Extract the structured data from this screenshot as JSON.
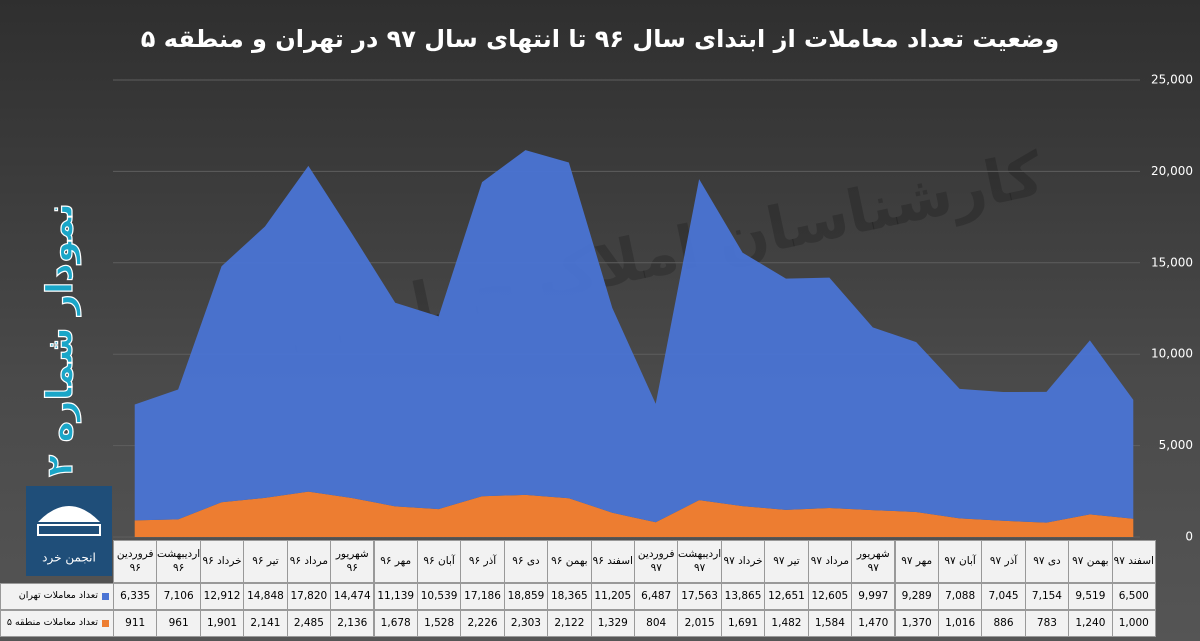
{
  "chart_data": {
    "type": "stacked-area",
    "title": "وضعیت تعداد معاملات از ابتدای سال ۹۶ تا انتهای سال ۹۷ در تهران و منطقه ۵",
    "side_label": "نمودار شماره ۲",
    "logo_text": "انجمن خرد",
    "watermark": "کارشناسان املاک چهارخانه",
    "categories": [
      "فروردین ۹۶",
      "اردیبهشت ۹۶",
      "خرداد ۹۶",
      "تیر ۹۶",
      "مرداد ۹۶",
      "شهریور ۹۶",
      "مهر ۹۶",
      "آبان ۹۶",
      "آذر ۹۶",
      "دی ۹۶",
      "بهمن ۹۶",
      "اسفند ۹۶",
      "فروردین ۹۷",
      "اردیبهشت ۹۷",
      "خرداد ۹۷",
      "تیر ۹۷",
      "مرداد ۹۷",
      "شهریور ۹۷",
      "مهر ۹۷",
      "آبان ۹۷",
      "آذر ۹۷",
      "دی ۹۷",
      "بهمن ۹۷",
      "اسفند ۹۷"
    ],
    "series": [
      {
        "name": "تعداد معاملات منطقه ۵",
        "color": "#ed7d31",
        "values": [
          911,
          961,
          1901,
          2141,
          2485,
          2136,
          1678,
          1528,
          2226,
          2303,
          2122,
          1329,
          804,
          2015,
          1691,
          1482,
          1584,
          1470,
          1370,
          1016,
          886,
          783,
          1240,
          1000
        ],
        "value_labels": [
          "911",
          "961",
          "1,901",
          "2,141",
          "2,485",
          "2,136",
          "1,678",
          "1,528",
          "2,226",
          "2,303",
          "2,122",
          "1,329",
          "804",
          "2,015",
          "1,691",
          "1,482",
          "1,584",
          "1,470",
          "1,370",
          "1,016",
          "886",
          "783",
          "1,240",
          "1,000"
        ]
      },
      {
        "name": "تعداد معاملات تهران",
        "color": "#4a74d4",
        "values": [
          6335,
          7106,
          12912,
          14848,
          17820,
          14474,
          11139,
          10539,
          17186,
          18859,
          18365,
          11205,
          6487,
          17563,
          13865,
          12651,
          12605,
          9997,
          9289,
          7088,
          7045,
          7154,
          9519,
          6500
        ],
        "value_labels": [
          "6,335",
          "7,106",
          "12,912",
          "14,848",
          "17,820",
          "14,474",
          "11,139",
          "10,539",
          "17,186",
          "18,859",
          "18,365",
          "11,205",
          "6,487",
          "17,563",
          "13,865",
          "12,651",
          "12,605",
          "9,997",
          "9,289",
          "7,088",
          "7,045",
          "7,154",
          "9,519",
          "6,500"
        ]
      }
    ],
    "ylim": [
      0,
      25000
    ],
    "yticks": [
      0,
      {
        "value": 5000,
        "label": "5,000"
      },
      {
        "value": 10000,
        "label": "10,000"
      },
      {
        "value": 15000,
        "label": "15,000"
      },
      {
        "value": 20000,
        "label": "20,000"
      },
      {
        "value": 25000,
        "label": "25,000"
      }
    ],
    "grid": true
  }
}
